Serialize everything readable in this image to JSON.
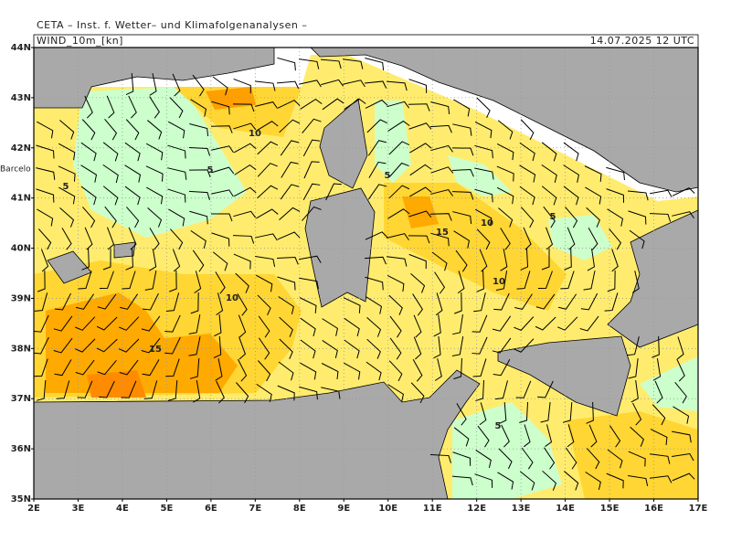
{
  "header": {
    "title": "CETA – Inst. f. Wetter– und Klimafolgenanalysen –",
    "variable": "WIND_10m_[kn]",
    "valid": "14.07.2025 12 UTC"
  },
  "map": {
    "lat_labels": [
      "44N",
      "43N",
      "42N",
      "41N",
      "40N",
      "39N",
      "38N",
      "37N",
      "36N",
      "35N"
    ],
    "lon_labels": [
      "2E",
      "3E",
      "4E",
      "5E",
      "6E",
      "7E",
      "8E",
      "9E",
      "10E",
      "11E",
      "12E",
      "13E",
      "14E",
      "15E",
      "16E",
      "17E"
    ],
    "contour_labels": [
      10,
      5,
      5,
      5,
      15,
      10,
      5,
      10,
      10,
      15,
      5
    ],
    "place_labels": [
      "Barcelo"
    ]
  }
}
